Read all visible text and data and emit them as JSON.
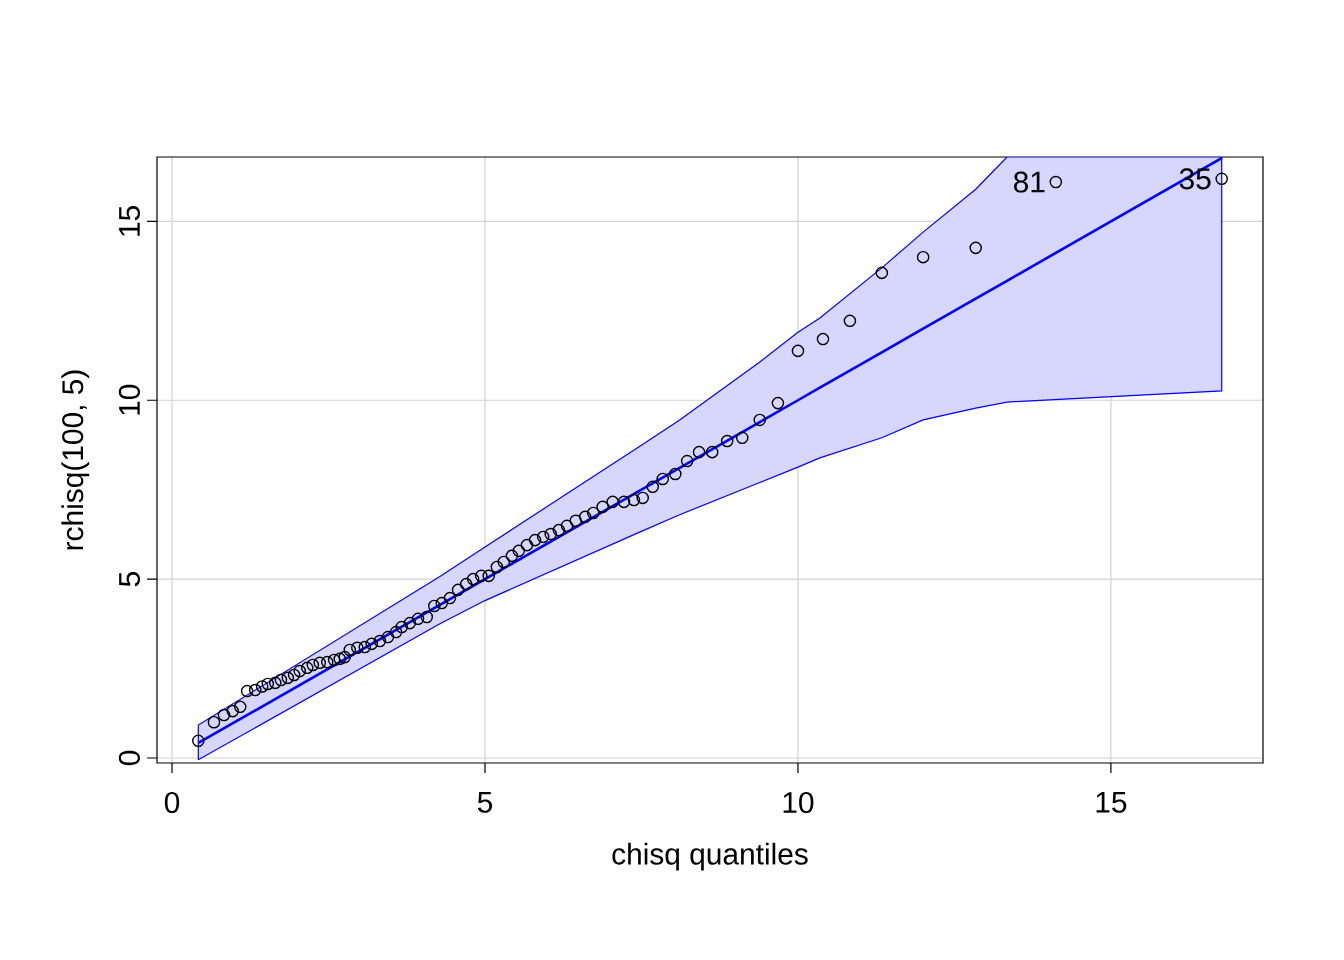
{
  "chart_data": {
    "type": "scatter",
    "xlabel": "chisq quantiles",
    "ylabel": "rchisq(100, 5)",
    "xlim": [
      -0.24,
      17.43
    ],
    "ylim": [
      -0.14,
      16.8
    ],
    "xticks": [
      0,
      5,
      10,
      15
    ],
    "yticks": [
      0,
      5,
      10,
      15
    ],
    "grid": true,
    "marker": "circle",
    "annotations": [
      {
        "text": "81",
        "x": 14.12,
        "y": 16.1
      },
      {
        "text": "35",
        "x": 16.77,
        "y": 16.19
      }
    ],
    "series": [
      {
        "color": "#000000",
        "x": [
          0.42,
          0.67,
          0.83,
          0.97,
          1.09,
          1.2,
          1.33,
          1.44,
          1.53,
          1.65,
          1.74,
          1.85,
          1.95,
          2.04,
          2.16,
          2.25,
          2.36,
          2.48,
          2.59,
          2.68,
          2.76,
          2.84,
          2.96,
          3.08,
          3.19,
          3.32,
          3.45,
          3.58,
          3.67,
          3.8,
          3.93,
          4.07,
          4.19,
          4.31,
          4.44,
          4.57,
          4.7,
          4.81,
          4.94,
          5.06,
          5.19,
          5.3,
          5.43,
          5.54,
          5.67,
          5.8,
          5.93,
          6.05,
          6.18,
          6.31,
          6.45,
          6.6,
          6.73,
          6.88,
          7.04,
          7.22,
          7.38,
          7.52,
          7.68,
          7.84,
          8.04,
          8.23,
          8.42,
          8.63,
          8.87,
          9.11,
          9.39,
          9.68,
          10.0,
          10.4,
          10.83,
          11.34,
          12.0,
          12.84,
          14.12,
          16.77
        ],
        "values": [
          0.48,
          1.0,
          1.2,
          1.31,
          1.43,
          1.87,
          1.9,
          2.0,
          2.07,
          2.1,
          2.18,
          2.24,
          2.32,
          2.43,
          2.52,
          2.6,
          2.66,
          2.68,
          2.74,
          2.77,
          2.82,
          3.02,
          3.08,
          3.1,
          3.19,
          3.27,
          3.38,
          3.52,
          3.66,
          3.77,
          3.89,
          3.94,
          4.25,
          4.33,
          4.47,
          4.7,
          4.86,
          5.0,
          5.09,
          5.09,
          5.34,
          5.48,
          5.65,
          5.79,
          5.95,
          6.09,
          6.18,
          6.26,
          6.37,
          6.49,
          6.63,
          6.74,
          6.85,
          7.02,
          7.16,
          7.16,
          7.21,
          7.27,
          7.58,
          7.8,
          7.94,
          8.3,
          8.55,
          8.55,
          8.86,
          8.95,
          9.45,
          9.92,
          11.38,
          11.71,
          12.22,
          13.56,
          14.0,
          14.26,
          16.1,
          16.19
        ]
      },
      {
        "type": "line",
        "color": "#0000ff",
        "marker": "none",
        "line_style": "solid",
        "x": [
          0.42,
          4.28,
          5,
          7.48,
          8.11,
          9.39,
          10,
          10.35,
          11.34,
          12,
          12.84,
          13.34,
          16.77
        ],
        "values": [
          0.42,
          4.28,
          5,
          7.48,
          8.11,
          9.39,
          10,
          10.35,
          11.34,
          12,
          12.84,
          13.34,
          16.77
        ],
        "lower": [
          -0.05,
          3.75,
          4.4,
          6.32,
          6.8,
          7.7,
          8.13,
          8.39,
          8.95,
          9.45,
          9.78,
          9.95,
          10.26
        ],
        "upper": [
          0.92,
          5.07,
          5.9,
          8.72,
          9.45,
          11.07,
          11.9,
          12.3,
          13.7,
          14.7,
          15.9,
          16.8,
          16.8
        ]
      }
    ]
  }
}
